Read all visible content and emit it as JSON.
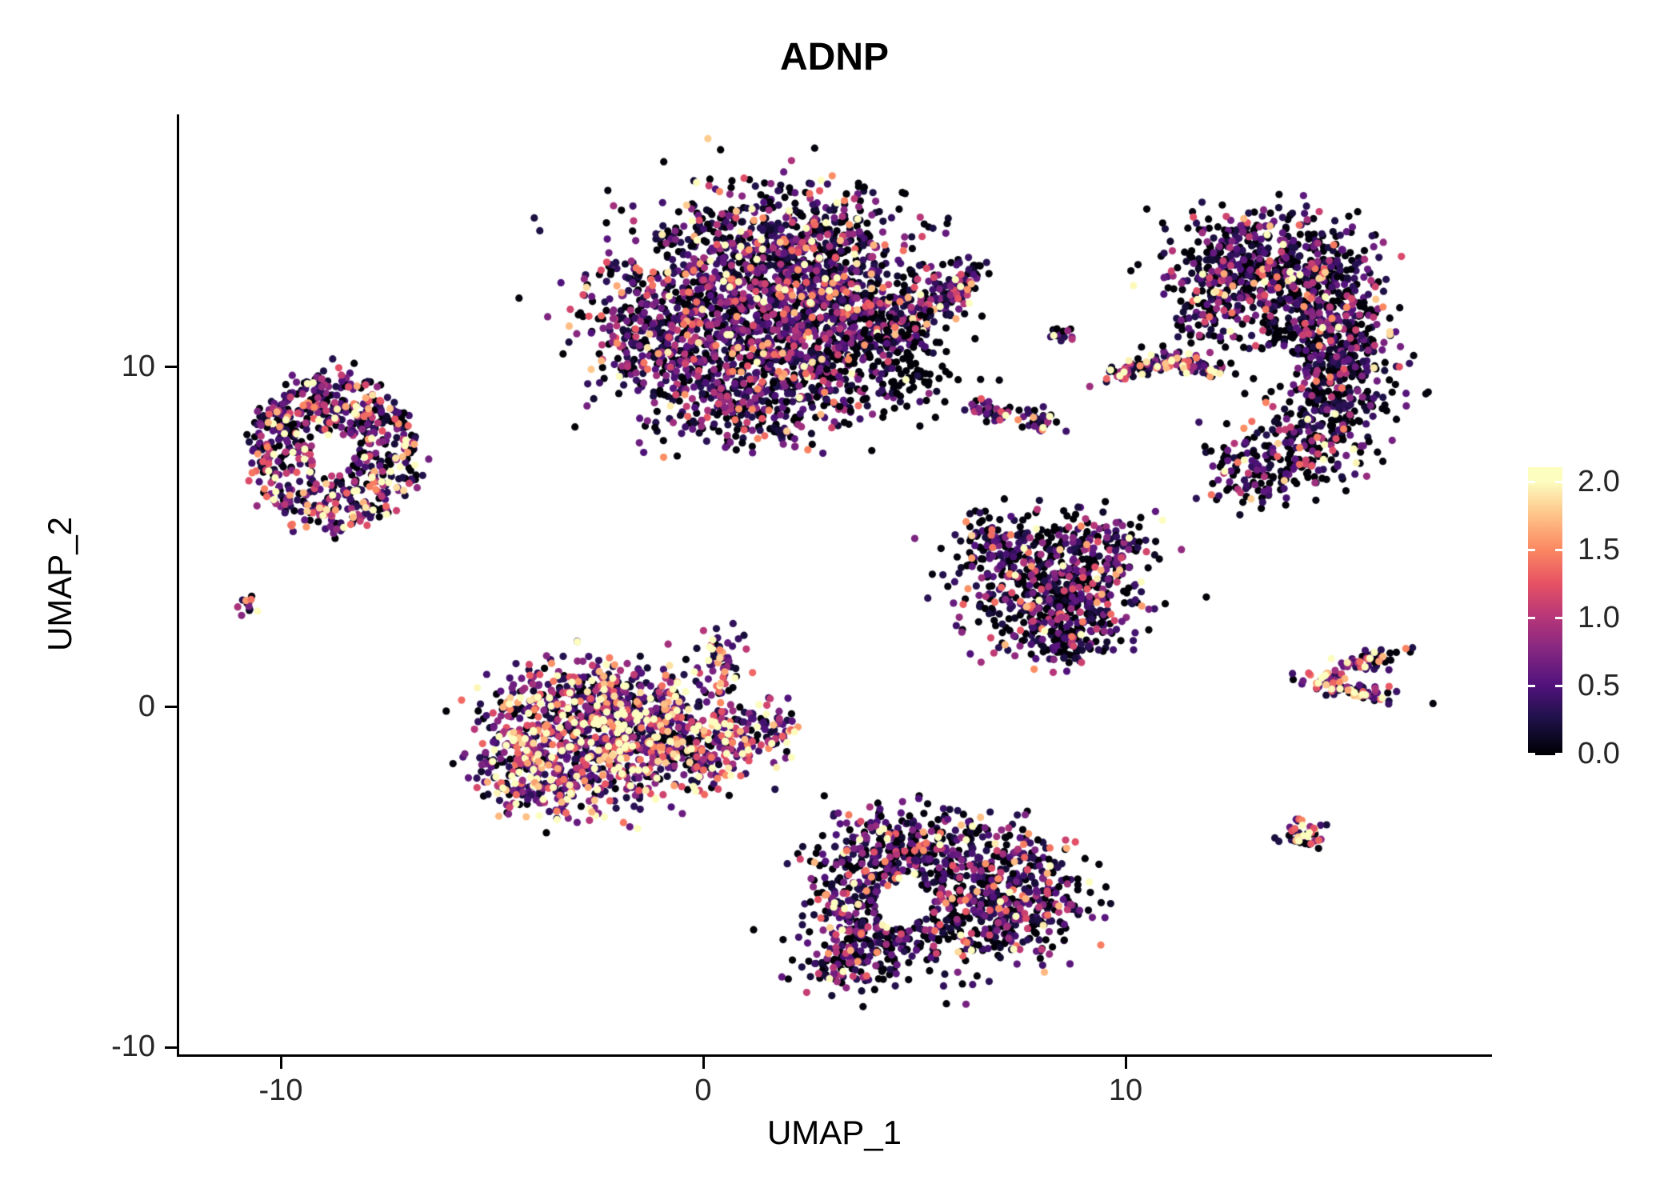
{
  "title": "ADNP",
  "axes": {
    "x_label": "UMAP_1",
    "y_label": "UMAP_2",
    "x_tick_labels": [
      "-10",
      "0",
      "10"
    ],
    "y_tick_labels": [
      "10",
      "0",
      "-10"
    ]
  },
  "legend": {
    "labels": [
      "2.0",
      "1.5",
      "1.0",
      "0.5",
      "0.0"
    ]
  },
  "chart_data": {
    "type": "scatter",
    "title": "ADNP",
    "xlabel": "UMAP_1",
    "ylabel": "UMAP_2",
    "xlim": [
      -12.4,
      18.6
    ],
    "ylim": [
      -10.2,
      17.4
    ],
    "x_ticks": [
      -10,
      0,
      10
    ],
    "y_ticks": [
      10,
      0,
      -10
    ],
    "grid": false,
    "point_radius_px": 4.6,
    "n_points_approx": 8900,
    "colorbar": {
      "range": [
        0,
        2
      ],
      "tick_values": [
        2.0,
        1.5,
        1.0,
        0.5,
        0.0
      ],
      "colormap": "magma",
      "stops": [
        [
          0.0,
          "#000004"
        ],
        [
          0.125,
          "#1d1147"
        ],
        [
          0.25,
          "#51127c"
        ],
        [
          0.375,
          "#822681"
        ],
        [
          0.5,
          "#b63679"
        ],
        [
          0.625,
          "#e65164"
        ],
        [
          0.75,
          "#fb8861"
        ],
        [
          0.875,
          "#fec287"
        ],
        [
          1.0,
          "#fcfdbf"
        ]
      ]
    },
    "clusters": [
      {
        "name": "top-center-main",
        "n": 2600,
        "expr": {
          "p_zero": 0.33,
          "mean": 0.55
        },
        "blobs": [
          {
            "x": 0.5,
            "y": 12.6,
            "sx": 1.5,
            "sy": 1.3,
            "w": 3
          },
          {
            "x": 2.2,
            "y": 13.8,
            "sx": 1.4,
            "sy": 0.9,
            "w": 2.5
          },
          {
            "x": -0.9,
            "y": 11.0,
            "sx": 1.0,
            "sy": 1.0,
            "w": 2
          },
          {
            "x": 1.5,
            "y": 11.2,
            "sx": 1.2,
            "sy": 1.0,
            "w": 2.5
          },
          {
            "x": 3.3,
            "y": 12.5,
            "sx": 1.0,
            "sy": 1.0,
            "w": 2
          },
          {
            "x": 0.6,
            "y": 9.4,
            "sx": 1.1,
            "sy": 0.7,
            "w": 1.5
          },
          {
            "x": 2.6,
            "y": 9.9,
            "sx": 0.9,
            "sy": 0.7,
            "w": 1.2
          },
          {
            "x": 3.9,
            "y": 11.0,
            "sx": 0.7,
            "sy": 0.6,
            "w": 0.8
          },
          {
            "x": 1.3,
            "y": 8.4,
            "sx": 1.1,
            "sy": 0.45,
            "w": 0.7
          },
          {
            "x": 5.2,
            "y": 11.5,
            "sx": 0.75,
            "sy": 0.28,
            "angle": 40,
            "w": 0.7
          },
          {
            "x": 6.0,
            "y": 12.4,
            "sx": 0.5,
            "sy": 0.25,
            "angle": 40,
            "w": 0.5
          }
        ]
      },
      {
        "name": "top-center-sparse-right",
        "n": 140,
        "expr": {
          "p_zero": 0.78,
          "mean": 0.4
        },
        "blobs": [
          {
            "x": 4.7,
            "y": 10.2,
            "sx": 0.85,
            "sy": 0.8,
            "w": 1
          }
        ]
      },
      {
        "name": "left-ring",
        "n": 680,
        "expr": {
          "p_zero": 0.27,
          "mean": 0.75
        },
        "ring": {
          "x": -8.75,
          "y": 7.45,
          "rx": 1.95,
          "ry": 2.3,
          "inner": 0.28
        }
      },
      {
        "name": "left-tiny",
        "n": 12,
        "expr": {
          "p_zero": 0.3,
          "mean": 0.7
        },
        "blobs": [
          {
            "x": -10.75,
            "y": 3.0,
            "sx": 0.13,
            "sy": 0.2,
            "w": 1
          }
        ]
      },
      {
        "name": "center-left-warm",
        "n": 1500,
        "expr": {
          "p_zero": 0.15,
          "mean": 0.85
        },
        "blobs": [
          {
            "x": -3.4,
            "y": -0.6,
            "sx": 1.0,
            "sy": 1.0,
            "w": 2.5
          },
          {
            "x": -2.2,
            "y": -1.5,
            "sx": 1.0,
            "sy": 0.9,
            "w": 2.5
          },
          {
            "x": -2.6,
            "y": 0.3,
            "sx": 0.9,
            "sy": 0.6,
            "w": 1.5
          },
          {
            "x": -1.2,
            "y": -0.4,
            "sx": 0.9,
            "sy": 0.7,
            "w": 1.8
          },
          {
            "x": -3.9,
            "y": -2.2,
            "sx": 0.7,
            "sy": 0.6,
            "w": 1.2
          },
          {
            "x": -0.3,
            "y": -1.3,
            "sx": 0.8,
            "sy": 0.6,
            "w": 1.5
          },
          {
            "x": 0.8,
            "y": -1.0,
            "sx": 0.7,
            "sy": 0.5,
            "w": 1.0
          },
          {
            "x": 1.4,
            "y": -0.5,
            "sx": 0.4,
            "sy": 0.4,
            "w": 0.5
          },
          {
            "x": 0.4,
            "y": 1.3,
            "sx": 0.3,
            "sy": 0.6,
            "w": 0.5
          },
          {
            "x": -4.4,
            "y": -1.0,
            "sx": 0.4,
            "sy": 0.7,
            "w": 0.8
          }
        ]
      },
      {
        "name": "bottom-center",
        "n": 1250,
        "expr": {
          "p_zero": 0.38,
          "mean": 0.55
        },
        "blobs": [
          {
            "x": 4.1,
            "y": -4.4,
            "sx": 0.8,
            "sy": 0.6,
            "w": 1.5
          },
          {
            "x": 5.6,
            "y": -4.3,
            "sx": 1.0,
            "sy": 0.7,
            "w": 2
          },
          {
            "x": 7.1,
            "y": -4.9,
            "sx": 0.9,
            "sy": 0.8,
            "w": 2
          },
          {
            "x": 8.0,
            "y": -6.0,
            "sx": 0.7,
            "sy": 0.7,
            "w": 1.2
          },
          {
            "x": 6.0,
            "y": -6.3,
            "sx": 1.1,
            "sy": 0.8,
            "w": 2
          },
          {
            "x": 4.3,
            "y": -6.8,
            "sx": 0.9,
            "sy": 0.7,
            "w": 1.5
          },
          {
            "x": 3.4,
            "y": -5.9,
            "sx": 0.5,
            "sy": 0.8,
            "w": 1
          },
          {
            "x": 3.2,
            "y": -7.6,
            "sx": 0.5,
            "sy": 0.4,
            "w": 0.6
          }
        ],
        "holes": [
          {
            "x": 4.7,
            "y": -5.8,
            "r": 0.65
          }
        ]
      },
      {
        "name": "right-mid-triangle",
        "n": 800,
        "expr": {
          "p_zero": 0.42,
          "mean": 0.5
        },
        "blobs": [
          {
            "x": 8.2,
            "y": 4.4,
            "sx": 1.0,
            "sy": 0.7,
            "w": 2
          },
          {
            "x": 7.5,
            "y": 3.3,
            "sx": 0.8,
            "sy": 0.8,
            "w": 1.8
          },
          {
            "x": 8.9,
            "y": 3.0,
            "sx": 0.8,
            "sy": 0.7,
            "w": 1.8
          },
          {
            "x": 8.5,
            "y": 1.9,
            "sx": 0.5,
            "sy": 0.4,
            "w": 0.8
          },
          {
            "x": 6.8,
            "y": 4.8,
            "sx": 0.4,
            "sy": 0.4,
            "w": 0.6
          },
          {
            "x": 9.6,
            "y": 4.6,
            "sx": 0.5,
            "sy": 0.5,
            "w": 0.8
          }
        ]
      },
      {
        "name": "small-mid-a",
        "n": 42,
        "expr": {
          "p_zero": 0.3,
          "mean": 0.65
        },
        "blobs": [
          {
            "x": 6.85,
            "y": 8.65,
            "sx": 0.38,
            "sy": 0.16,
            "angle": -10,
            "w": 1
          }
        ]
      },
      {
        "name": "small-mid-b",
        "n": 30,
        "expr": {
          "p_zero": 0.3,
          "mean": 0.65
        },
        "blobs": [
          {
            "x": 7.85,
            "y": 8.35,
            "sx": 0.28,
            "sy": 0.22,
            "w": 1
          }
        ]
      },
      {
        "name": "small-mid-c",
        "n": 14,
        "expr": {
          "p_zero": 0.3,
          "mean": 0.65
        },
        "blobs": [
          {
            "x": 8.45,
            "y": 10.95,
            "sx": 0.2,
            "sy": 0.12,
            "w": 1
          }
        ]
      },
      {
        "name": "streak",
        "n": 130,
        "expr": {
          "p_zero": 0.18,
          "mean": 0.95
        },
        "blobs": [
          {
            "x": 10.4,
            "y": 10.0,
            "sx": 0.55,
            "sy": 0.12,
            "angle": 18,
            "w": 1.2
          },
          {
            "x": 11.5,
            "y": 10.0,
            "sx": 0.45,
            "sy": 0.11,
            "angle": -15,
            "w": 0.8
          }
        ]
      },
      {
        "name": "right-large",
        "n": 1500,
        "expr": {
          "p_zero": 0.45,
          "mean": 0.5
        },
        "blobs": [
          {
            "x": 13.4,
            "y": 13.4,
            "sx": 1.1,
            "sy": 0.65,
            "w": 2
          },
          {
            "x": 14.4,
            "y": 12.4,
            "sx": 0.8,
            "sy": 0.7,
            "w": 1.6
          },
          {
            "x": 14.9,
            "y": 11.0,
            "sx": 0.7,
            "sy": 0.8,
            "w": 1.6
          },
          {
            "x": 15.0,
            "y": 9.4,
            "sx": 0.7,
            "sy": 0.8,
            "w": 1.6
          },
          {
            "x": 14.4,
            "y": 7.9,
            "sx": 0.8,
            "sy": 0.7,
            "w": 1.5
          },
          {
            "x": 13.3,
            "y": 7.0,
            "sx": 0.7,
            "sy": 0.5,
            "w": 1
          },
          {
            "x": 12.5,
            "y": 12.7,
            "sx": 0.7,
            "sy": 0.6,
            "w": 1.2
          },
          {
            "x": 12.1,
            "y": 11.5,
            "sx": 0.5,
            "sy": 0.6,
            "w": 0.8
          },
          {
            "x": 13.9,
            "y": 10.8,
            "sx": 0.6,
            "sy": 0.7,
            "w": 0.8
          }
        ],
        "holes": [
          {
            "x": 13.5,
            "y": 10.0,
            "r": 0.55
          }
        ]
      },
      {
        "name": "right-chevron",
        "n": 140,
        "expr": {
          "p_zero": 0.22,
          "mean": 0.85
        },
        "blobs": [
          {
            "x": 15.4,
            "y": 1.2,
            "sx": 0.6,
            "sy": 0.14,
            "angle": 22,
            "w": 1
          },
          {
            "x": 15.3,
            "y": 0.5,
            "sx": 0.55,
            "sy": 0.13,
            "angle": -14,
            "w": 1
          }
        ]
      },
      {
        "name": "right-tiny",
        "n": 48,
        "expr": {
          "p_zero": 0.3,
          "mean": 0.8
        },
        "blobs": [
          {
            "x": 14.2,
            "y": -3.75,
            "sx": 0.24,
            "sy": 0.2,
            "w": 1
          }
        ]
      }
    ]
  }
}
